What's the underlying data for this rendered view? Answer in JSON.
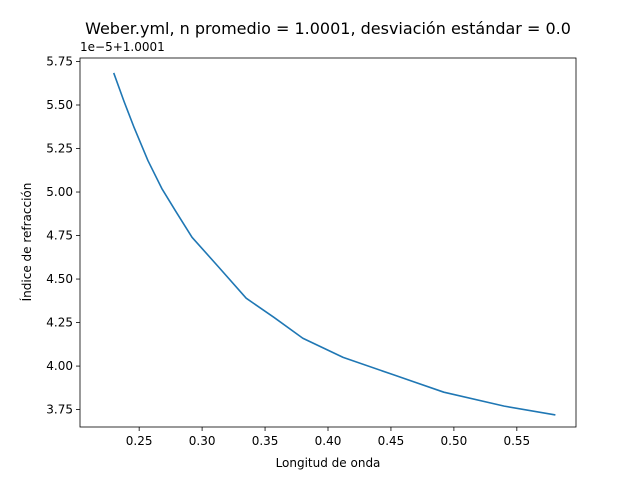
{
  "chart_data": {
    "type": "line",
    "title": "Weber.yml, n promedio = 1.0001, desviación estándar = 0.0",
    "xlabel": "Longitud de onda",
    "ylabel": "Índice de refracción",
    "y_offset_text": "1e−5+1.0001",
    "xlim": [
      0.203,
      0.597
    ],
    "ylim": [
      3.65,
      5.77
    ],
    "x_ticks": [
      0.25,
      0.3,
      0.35,
      0.4,
      0.45,
      0.5,
      0.55
    ],
    "x_tick_labels": [
      "0.25",
      "0.30",
      "0.35",
      "0.40",
      "0.45",
      "0.50",
      "0.55"
    ],
    "y_ticks": [
      3.75,
      4.0,
      4.25,
      4.5,
      4.75,
      5.0,
      5.25,
      5.5,
      5.75
    ],
    "y_tick_labels": [
      "3.75",
      "4.00",
      "4.25",
      "4.50",
      "4.75",
      "5.00",
      "5.25",
      "5.50",
      "5.75"
    ],
    "grid": false,
    "series": [
      {
        "color": "#1f77b4",
        "x": [
          0.23,
          0.238,
          0.246,
          0.257,
          0.268,
          0.279,
          0.292,
          0.313,
          0.335,
          0.357,
          0.38,
          0.412,
          0.452,
          0.492,
          0.54,
          0.58
        ],
        "y": [
          5.68,
          5.52,
          5.37,
          5.18,
          5.02,
          4.89,
          4.74,
          4.57,
          4.39,
          4.28,
          4.16,
          4.05,
          3.95,
          3.85,
          3.77,
          3.72
        ]
      }
    ]
  }
}
